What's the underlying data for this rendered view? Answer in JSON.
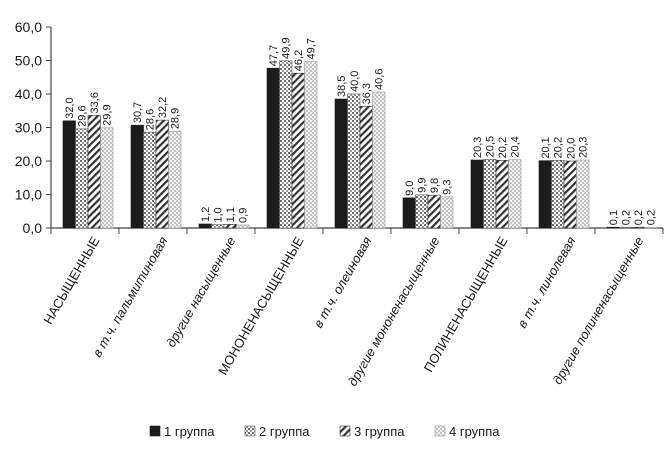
{
  "chart_data": {
    "type": "bar",
    "title": "",
    "xlabel": "",
    "ylabel": "",
    "ylim": [
      0,
      60
    ],
    "yticks": [
      "0,0",
      "10,0",
      "20,0",
      "30,0",
      "40,0",
      "50,0",
      "60,0"
    ],
    "grid": false,
    "legend_position": "bottom",
    "categories": [
      {
        "label": "НАСЫЩЕННЫЕ",
        "style": "upper"
      },
      {
        "label": "в т.ч. пальмитиновая",
        "style": "italic"
      },
      {
        "label": "другие насыщенные",
        "style": "italic"
      },
      {
        "label": "МОНОНЕНАСЫЩЕННЫЕ",
        "style": "upper"
      },
      {
        "label": "в т.ч. олеиновая",
        "style": "italic"
      },
      {
        "label": "другие мононенасыщенные",
        "style": "italic"
      },
      {
        "label": "ПОЛИНЕНАСЫЩЕННЫЕ",
        "style": "upper"
      },
      {
        "label": "в т.ч. линолевая",
        "style": "italic"
      },
      {
        "label": "другие полиненасыщенные",
        "style": "italic"
      }
    ],
    "series": [
      {
        "name": "1 группа",
        "pattern": "solid",
        "values": [
          32.0,
          30.7,
          1.2,
          47.7,
          38.5,
          9.0,
          20.3,
          20.1,
          0.1
        ],
        "labels": [
          "32,0",
          "30,7",
          "1,2",
          "47,7",
          "38,5",
          "9,0",
          "20,3",
          "20,1",
          "0,1"
        ]
      },
      {
        "name": "2 группа",
        "pattern": "dots",
        "values": [
          29.6,
          28.6,
          1.0,
          49.9,
          40.0,
          9.9,
          20.5,
          20.2,
          0.2
        ],
        "labels": [
          "29,6",
          "28,6",
          "1,0",
          "49,9",
          "40,0",
          "9,9",
          "20,5",
          "20,2",
          "0,2"
        ]
      },
      {
        "name": "3 группа",
        "pattern": "diagonal",
        "values": [
          33.6,
          32.2,
          1.1,
          46.2,
          36.3,
          9.8,
          20.2,
          20.0,
          0.2
        ],
        "labels": [
          "33,6",
          "32,2",
          "1,1",
          "46,2",
          "36,3",
          "9,8",
          "20,2",
          "20,0",
          "0,2"
        ]
      },
      {
        "name": "4 группа",
        "pattern": "checker",
        "values": [
          29.9,
          28.9,
          0.9,
          49.7,
          40.6,
          9.3,
          20.4,
          20.3,
          0.2
        ],
        "labels": [
          "29,9",
          "28,9",
          "0,9",
          "49,7",
          "40,6",
          "9,3",
          "20,4",
          "20,3",
          "0,2"
        ]
      }
    ]
  }
}
